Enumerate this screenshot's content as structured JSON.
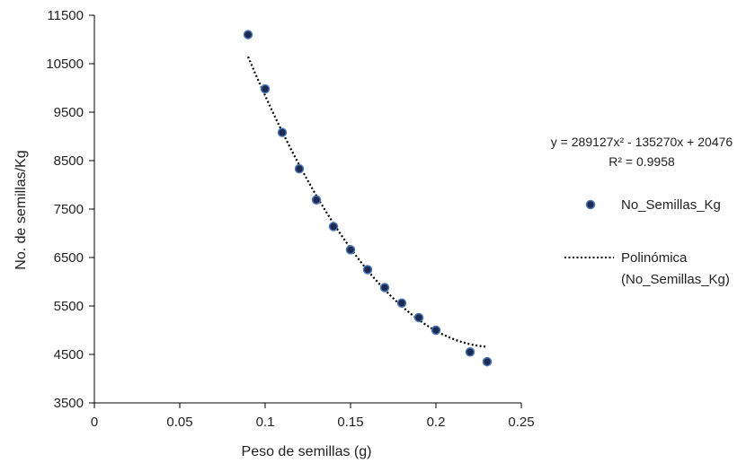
{
  "chart_data": {
    "type": "scatter",
    "title": "",
    "xlabel": "Peso de semillas (g)",
    "ylabel": "No. de semillas/Kg",
    "xlim": [
      0,
      0.25
    ],
    "ylim": [
      3500,
      11500
    ],
    "xticks": [
      0,
      0.05,
      0.1,
      0.15,
      0.2,
      0.25
    ],
    "xtick_labels": [
      "0",
      "0.05",
      "0.1",
      "0.15",
      "0.2",
      "0.25"
    ],
    "yticks": [
      3500,
      4500,
      5500,
      6500,
      7500,
      8500,
      9500,
      10500,
      11500
    ],
    "ytick_labels": [
      "3500",
      "4500",
      "5500",
      "6500",
      "7500",
      "8500",
      "9500",
      "10500",
      "11500"
    ],
    "grid": false,
    "legend_position": "right",
    "series": [
      {
        "name": "No_Semillas_Kg",
        "kind": "scatter",
        "color": "#1f2a52",
        "edge_color": "#4a78b8",
        "x": [
          0.09,
          0.1,
          0.11,
          0.12,
          0.13,
          0.14,
          0.15,
          0.16,
          0.17,
          0.18,
          0.19,
          0.2,
          0.22,
          0.23
        ],
        "y": [
          11100,
          9980,
          9080,
          8330,
          7690,
          7140,
          6660,
          6250,
          5880,
          5560,
          5260,
          5000,
          4550,
          4350
        ]
      }
    ],
    "trendline": {
      "name_line1": "Polinómica",
      "name_line2": "(No_Semillas_Kg)",
      "type": "polynomial",
      "style": "dotted",
      "color": "#000000",
      "coefficients": [
        289127,
        -135270,
        20476
      ],
      "x_range": [
        0.09,
        0.23
      ],
      "equation_label": "y = 289127x² - 135270x + 20476",
      "r2_label": "R² = 0.9958"
    }
  }
}
